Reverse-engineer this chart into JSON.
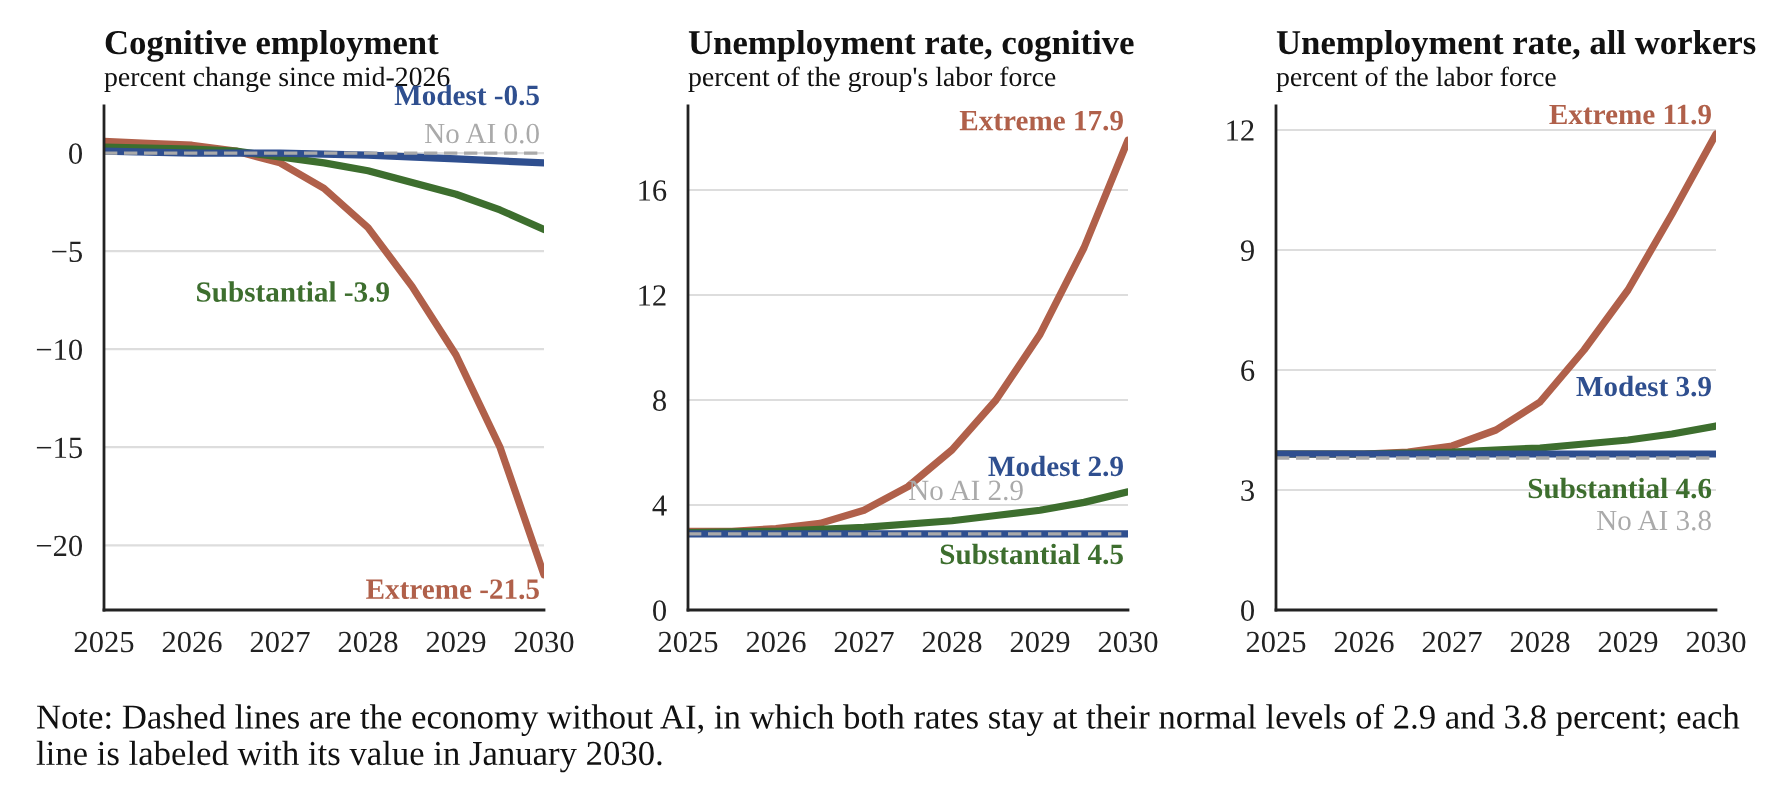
{
  "chart_data": [
    {
      "type": "line",
      "title": "Cognitive employment",
      "subtitle": "percent change since mid-2026",
      "grid": "y",
      "legend": false,
      "line_style": "solid",
      "xlim": [
        2025,
        2030
      ],
      "xticks": [
        2025,
        2026,
        2027,
        2028,
        2029,
        2030
      ],
      "ylim": [
        -23.3,
        2.4
      ],
      "yticks": [
        {
          "value": -20,
          "label": "−20"
        },
        {
          "value": -15,
          "label": "−15"
        },
        {
          "value": -10,
          "label": "−10"
        },
        {
          "value": -5,
          "label": "−5"
        },
        0
      ],
      "series": [
        {
          "name": "Extreme -21.5",
          "color": "#b0604a",
          "x": [
            2025,
            2025.5,
            2026,
            2026.5,
            2027,
            2027.5,
            2028,
            2028.5,
            2029,
            2029.5,
            2030
          ],
          "values": [
            0.6,
            0.5,
            0.4,
            0.1,
            -0.5,
            -1.8,
            -3.8,
            -6.8,
            -10.3,
            -15,
            -21.5
          ]
        },
        {
          "name": "Substantial -3.9",
          "color": "#3d6e2e",
          "x": [
            2025,
            2026,
            2026.5,
            2027,
            2027.5,
            2028,
            2028.5,
            2029,
            2029.5,
            2030
          ],
          "values": [
            0.3,
            0.2,
            0.1,
            -0.2,
            -0.5,
            -0.9,
            -1.5,
            -2.1,
            -2.9,
            -3.9
          ]
        },
        {
          "name": "Modest -0.5",
          "color": "#2f4f8f",
          "x": [
            2025,
            2026,
            2027,
            2028,
            2029,
            2030
          ],
          "values": [
            0.1,
            0.0,
            0.0,
            -0.1,
            -0.3,
            -0.5
          ]
        },
        {
          "name": "No AI 0.0",
          "color": "#aaaaaa",
          "line_style": "dashed",
          "x": [
            2025,
            2030
          ],
          "values": [
            0,
            0
          ]
        }
      ],
      "annotations": [
        "Note: Dashed lines are the economy without AI, in which both rates stay at their normal levels of 2.9 and 3.8 percent; each line is labeled with its value in January 2030."
      ]
    },
    {
      "type": "line",
      "title": "Unemployment rate, cognitive",
      "subtitle": "percent of the group's labor force",
      "grid": "y",
      "legend": false,
      "line_style": "solid",
      "xlim": [
        2025,
        2030
      ],
      "xticks": [
        2025,
        2026,
        2027,
        2028,
        2029,
        2030
      ],
      "ylim": [
        0,
        19.2
      ],
      "yticks": [
        0,
        4,
        8,
        12,
        16
      ],
      "series": [
        {
          "name": "Extreme 17.9",
          "color": "#b0604a",
          "x": [
            2025,
            2025.5,
            2026,
            2026.5,
            2027,
            2027.5,
            2028,
            2028.5,
            2029,
            2029.5,
            2030
          ],
          "values": [
            3.0,
            3.0,
            3.1,
            3.3,
            3.8,
            4.7,
            6.1,
            8.0,
            10.5,
            13.8,
            17.9
          ]
        },
        {
          "name": "Substantial 4.5",
          "color": "#3d6e2e",
          "x": [
            2025,
            2026,
            2027,
            2028,
            2028.5,
            2029,
            2029.5,
            2030
          ],
          "values": [
            2.95,
            3.0,
            3.15,
            3.4,
            3.6,
            3.8,
            4.1,
            4.5
          ]
        },
        {
          "name": "Modest 2.9",
          "color": "#2f4f8f",
          "x": [
            2025,
            2030
          ],
          "values": [
            2.9,
            2.9
          ]
        },
        {
          "name": "No AI 2.9",
          "color": "#aaaaaa",
          "line_style": "dashed",
          "x": [
            2025,
            2030
          ],
          "values": [
            2.9,
            2.9
          ]
        }
      ]
    },
    {
      "type": "line",
      "title": "Unemployment rate, all workers",
      "subtitle": "percent of the labor force",
      "grid": "y",
      "legend": false,
      "line_style": "solid",
      "xlim": [
        2025,
        2030
      ],
      "xticks": [
        2025,
        2026,
        2027,
        2028,
        2029,
        2030
      ],
      "ylim": [
        0,
        12.6
      ],
      "yticks": [
        0,
        3,
        6,
        9,
        12
      ],
      "series": [
        {
          "name": "Extreme 11.9",
          "color": "#b0604a",
          "x": [
            2025,
            2026,
            2026.5,
            2027,
            2027.5,
            2028,
            2028.5,
            2029,
            2029.5,
            2030
          ],
          "values": [
            3.9,
            3.9,
            3.95,
            4.1,
            4.5,
            5.2,
            6.5,
            8.0,
            9.9,
            11.9
          ]
        },
        {
          "name": "Substantial 4.6",
          "color": "#3d6e2e",
          "x": [
            2025,
            2026,
            2027,
            2028,
            2029,
            2029.5,
            2030
          ],
          "values": [
            3.9,
            3.9,
            3.95,
            4.05,
            4.25,
            4.4,
            4.6
          ]
        },
        {
          "name": "Modest 3.9",
          "color": "#2f4f8f",
          "x": [
            2025,
            2030
          ],
          "values": [
            3.9,
            3.9
          ]
        },
        {
          "name": "No AI 3.8",
          "color": "#aaaaaa",
          "line_style": "dashed",
          "x": [
            2025,
            2030
          ],
          "values": [
            3.8,
            3.8
          ]
        }
      ]
    }
  ]
}
